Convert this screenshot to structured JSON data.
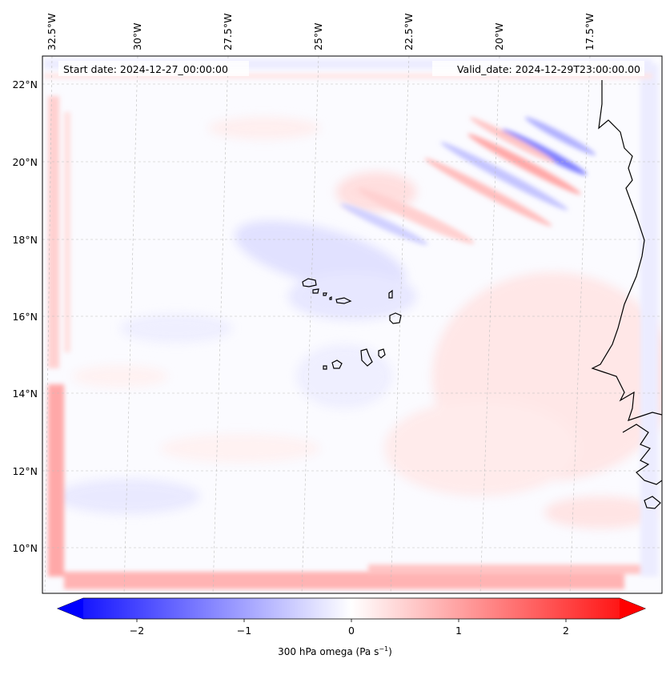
{
  "map": {
    "start_label": "Start date: 2024-12-27_00:00:00",
    "valid_label": "Valid_date: 2024-12-29T23:00:00.00",
    "lon_labels": [
      "32.5°W",
      "30°W",
      "27.5°W",
      "25°W",
      "22.5°W",
      "20°W",
      "17.5°W"
    ],
    "lat_labels": [
      "22°N",
      "20°N",
      "18°N",
      "16°N",
      "14°N",
      "12°N",
      "10°N"
    ],
    "field": "300 hPa omega",
    "colors": {
      "positive": "#ff0000",
      "negative": "#0000ff",
      "neutral": "#ffffff",
      "coast": "#000000",
      "grid": "#bdbdbd"
    }
  },
  "colorbar": {
    "label_prefix": "300 hPa omega (Pa s",
    "label_exponent": "−1",
    "label_suffix": ")",
    "ticks": [
      "−2",
      "−1",
      "0",
      "1",
      "2"
    ],
    "tick_values": [
      -2,
      -1,
      0,
      1,
      2
    ],
    "vmin": -2.5,
    "vmax": 2.5
  }
}
